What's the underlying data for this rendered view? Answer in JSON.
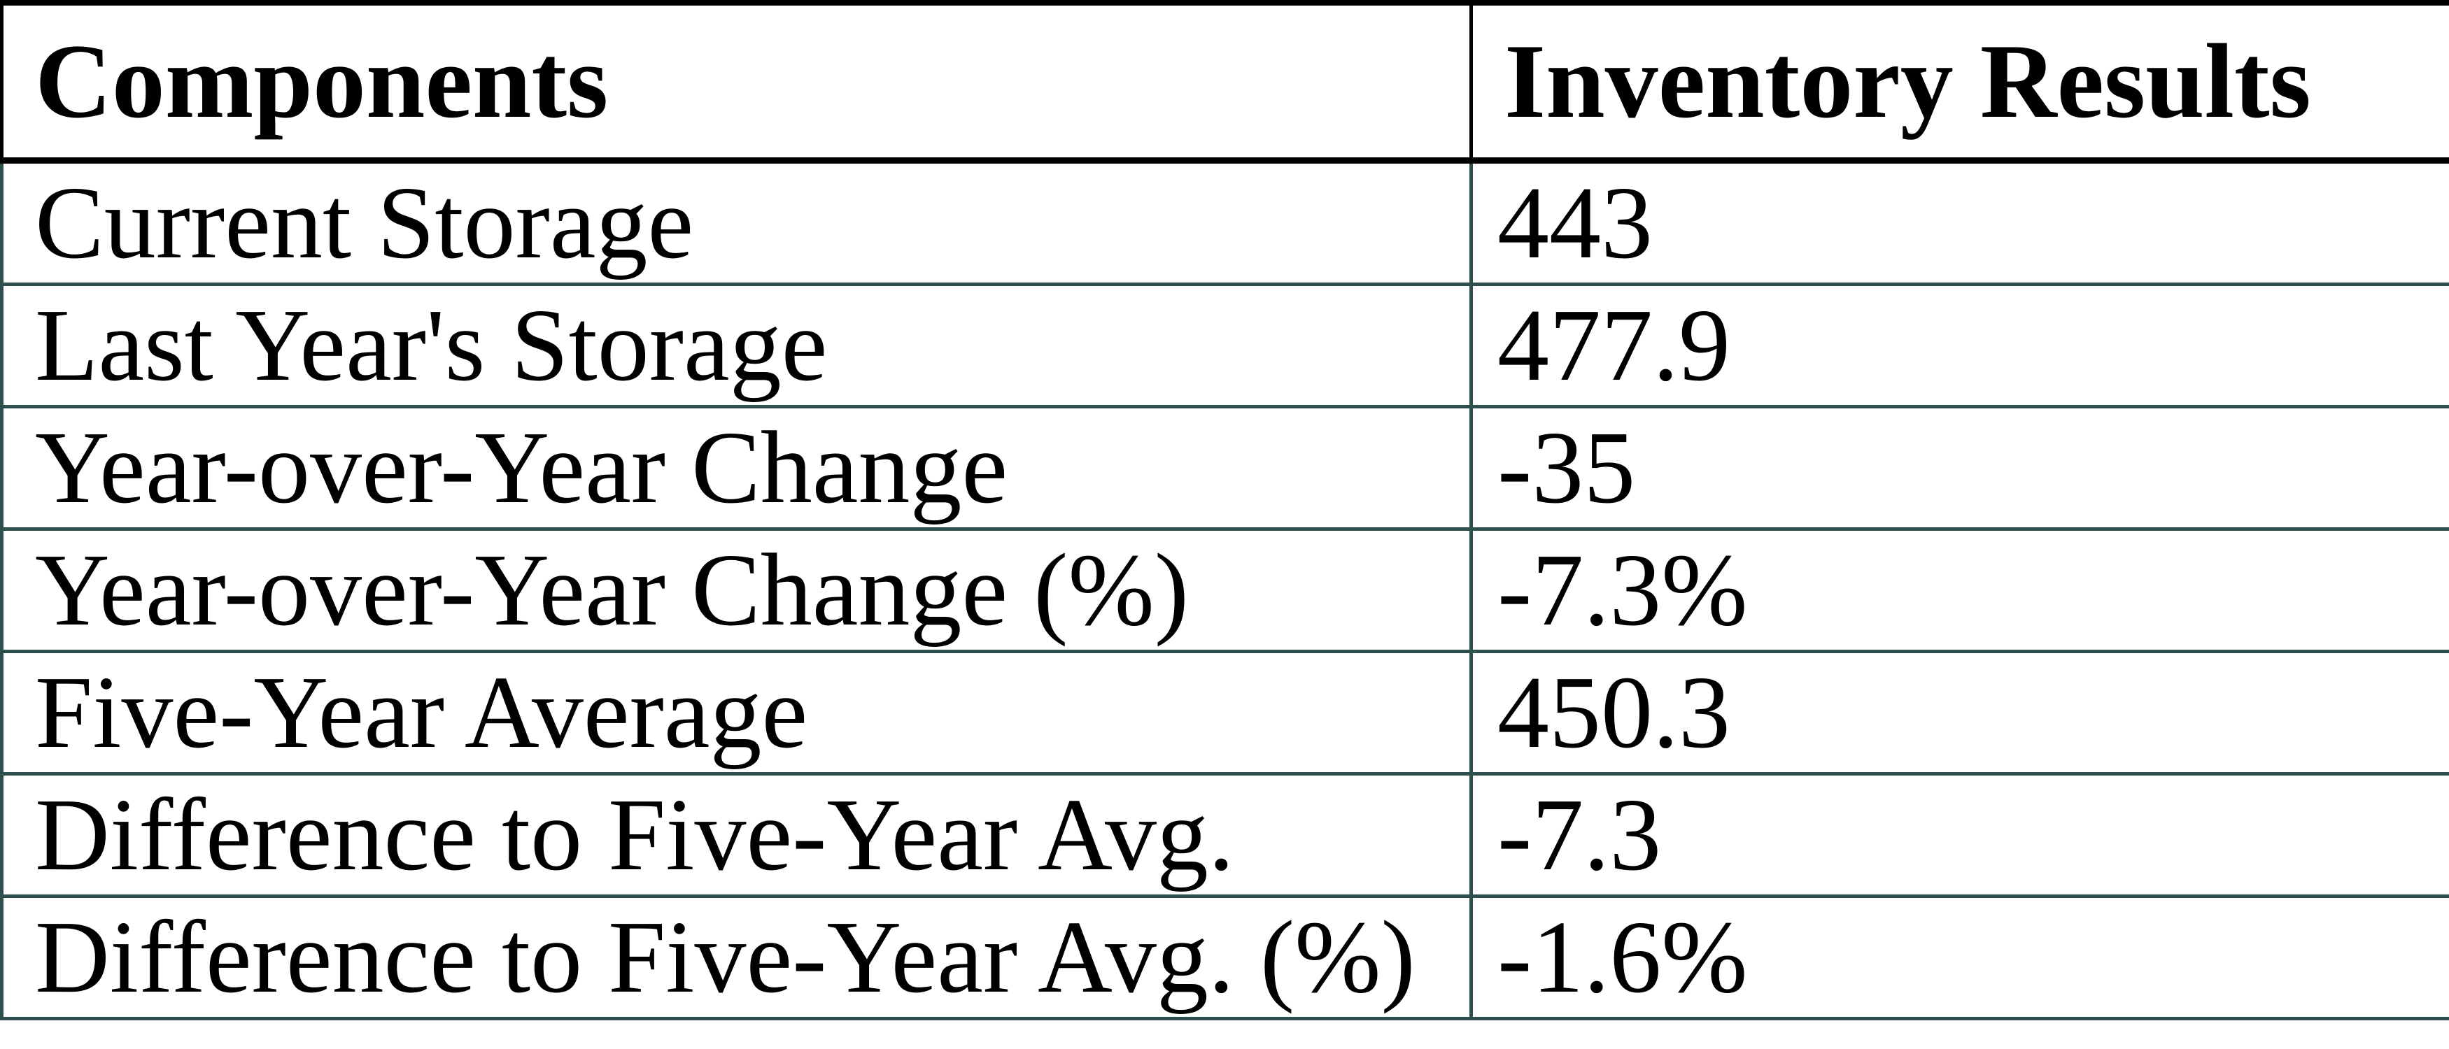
{
  "chart_data": {
    "type": "table",
    "columns": [
      "Components",
      "Inventory Results"
    ],
    "rows": [
      [
        "Current Storage",
        "443"
      ],
      [
        "Last Year's Storage",
        "477.9"
      ],
      [
        "Year-over-Year Change",
        "-35"
      ],
      [
        "Year-over-Year Change (%)",
        "-7.3%"
      ],
      [
        "Five-Year Average",
        "450.3"
      ],
      [
        "Difference to Five-Year Avg.",
        "-7.3"
      ],
      [
        "Difference to Five-Year Avg. (%)",
        "-1.6%"
      ]
    ]
  },
  "colors": {
    "header_border": "#000000",
    "body_border": "#2F4F4F",
    "text": "#000000",
    "background": "#FFFFFF"
  }
}
